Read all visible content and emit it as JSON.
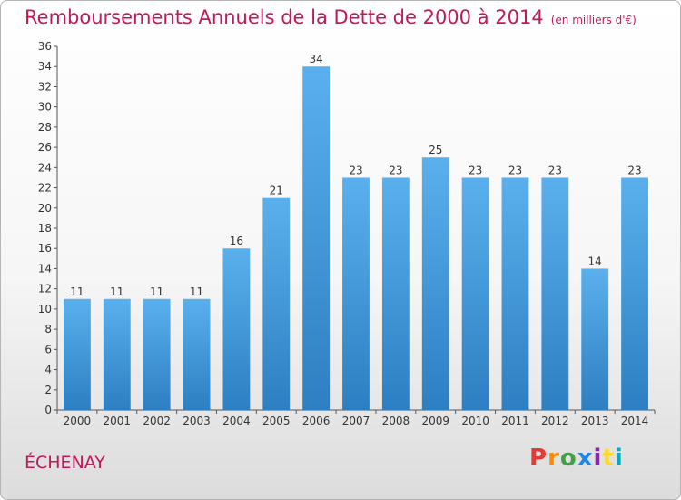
{
  "chart_data": {
    "type": "bar",
    "title": "Remboursements Annuels de la Dette de 2000 à 2014",
    "subtitle": "(en milliers d'€)",
    "categories": [
      "2000",
      "2001",
      "2002",
      "2003",
      "2004",
      "2005",
      "2006",
      "2007",
      "2008",
      "2009",
      "2010",
      "2011",
      "2012",
      "2013",
      "2014"
    ],
    "values": [
      11,
      11,
      11,
      11,
      16,
      21,
      34,
      23,
      23,
      25,
      23,
      23,
      23,
      14,
      23
    ],
    "ylim": [
      0,
      36
    ],
    "ytick_step": 2,
    "grid": false,
    "bar_color": "#4da6e8",
    "bar_color_dark": "#2a7fc4"
  },
  "footer": {
    "commune": "ÉCHENAY",
    "brand_letters": [
      "P",
      "r",
      "o",
      "x",
      "i",
      "t",
      "i"
    ],
    "brand_colors": [
      "#e53935",
      "#fb8c00",
      "#43a047",
      "#1e88e5",
      "#8e24aa",
      "#fdd835",
      "#00acc1"
    ]
  }
}
